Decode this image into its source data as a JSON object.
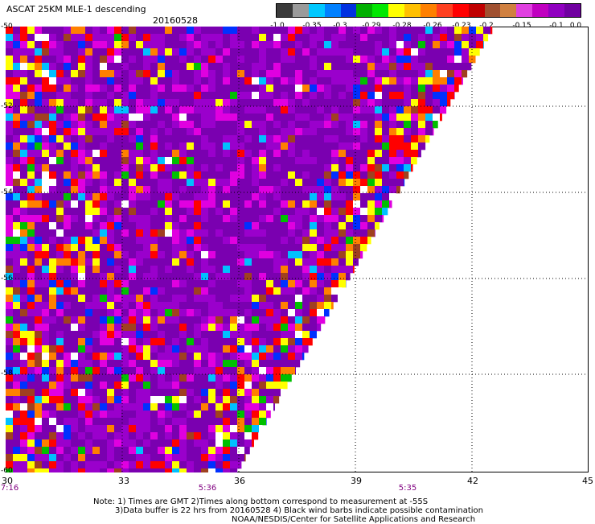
{
  "title": "ASCAT 25KM MLE-1 descending",
  "date": "20160528",
  "colorbar": {
    "labels": [
      "-1.0",
      "-0.35",
      "-0.3",
      "-0.29",
      "-0.28",
      "-0.26",
      "-0.23",
      "-0.2",
      "-0.15",
      "-0.1",
      "0.0"
    ],
    "colors": [
      "#3a3a3a",
      "#9a9a9a",
      "#00c8ff",
      "#0080ff",
      "#0030e0",
      "#00b000",
      "#00e800",
      "#ffff00",
      "#ffc000",
      "#ff8000",
      "#ff4020",
      "#ff0000",
      "#c00000",
      "#a05030",
      "#d08040",
      "#e040e0",
      "#c000c0",
      "#9000c0",
      "#7000a0"
    ]
  },
  "axes": {
    "lat_labels": [
      "-50",
      "-52",
      "-54",
      "-56",
      "-58",
      "-60"
    ],
    "lon_labels": [
      "30",
      "33",
      "36",
      "39",
      "42",
      "45"
    ],
    "time_labels": [
      "7:16",
      "5:36",
      "5:35"
    ]
  },
  "palette": {
    "purple_dark": "#7a00b0",
    "purple": "#9a00cc",
    "magenta": "#e000e0",
    "red": "#ff0000",
    "orange": "#ff8000",
    "yellow": "#ffff00",
    "blue": "#0030ff",
    "cyan": "#00c0ff",
    "green": "#00c000",
    "brown": "#a04020",
    "white": "#ffffff",
    "gray": "#808080",
    "time_label": "#800080"
  },
  "notes": [
    "Note: 1) Times are GMT 2)Times along bottom correspond to measurement at -55S",
    "3)Data buffer is 22 hrs from 20160528 4) Black wind barbs indicate possible contamination",
    "NOAA/NESDIS/Center for Satellite Applications and Research"
  ]
}
